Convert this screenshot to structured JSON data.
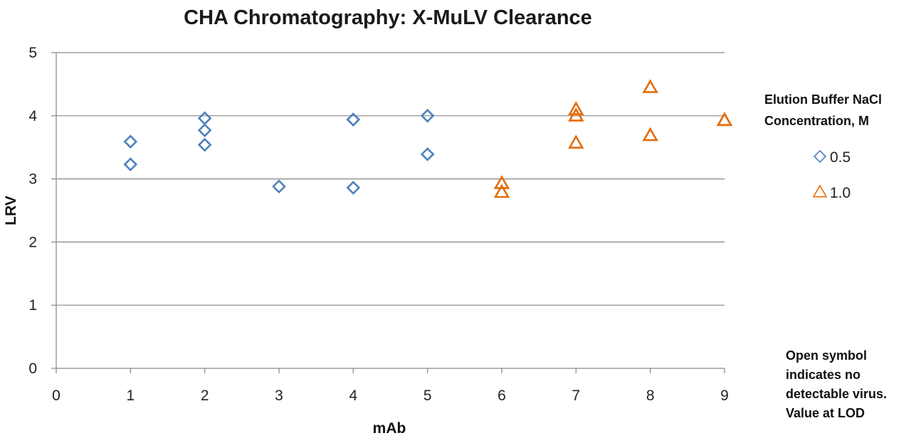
{
  "chart_data": {
    "type": "scatter",
    "title": "CHA Chromatography:  X-MuLV Clearance",
    "xlabel": "mAb",
    "ylabel": "LRV",
    "xlim": [
      0,
      9
    ],
    "ylim": [
      0,
      5
    ],
    "x_ticks": [
      "0",
      "1",
      "2",
      "3",
      "4",
      "5",
      "6",
      "7",
      "8",
      "9"
    ],
    "y_ticks": [
      "0",
      "1",
      "2",
      "3",
      "4",
      "5"
    ],
    "grid": "horizontal",
    "legend": {
      "title_lines": [
        "Elution Buffer NaCl",
        "Concentration, M"
      ],
      "placement": "right"
    },
    "series": [
      {
        "name": "0.5",
        "marker": "diamond",
        "color": "#4f81bd",
        "points": [
          {
            "x": 1,
            "y": 3.59
          },
          {
            "x": 1,
            "y": 3.23
          },
          {
            "x": 2,
            "y": 3.96
          },
          {
            "x": 2,
            "y": 3.77
          },
          {
            "x": 2,
            "y": 3.54
          },
          {
            "x": 3,
            "y": 2.88
          },
          {
            "x": 4,
            "y": 3.94
          },
          {
            "x": 4,
            "y": 3.94
          },
          {
            "x": 4,
            "y": 2.86
          },
          {
            "x": 5,
            "y": 4.0
          },
          {
            "x": 5,
            "y": 3.39
          }
        ]
      },
      {
        "name": "1.0",
        "marker": "triangle",
        "color": "#e46c0a",
        "points": [
          {
            "x": 6,
            "y": 2.93
          },
          {
            "x": 6,
            "y": 2.79
          },
          {
            "x": 7,
            "y": 4.1
          },
          {
            "x": 7,
            "y": 4.0
          },
          {
            "x": 7,
            "y": 3.57
          },
          {
            "x": 8,
            "y": 4.45
          },
          {
            "x": 8,
            "y": 3.69
          },
          {
            "x": 9,
            "y": 3.93
          },
          {
            "x": 9,
            "y": 3.93
          }
        ]
      }
    ],
    "annotation_lines": [
      "Open symbol",
      "indicates no",
      "detectable virus.",
      "Value at LOD"
    ]
  }
}
